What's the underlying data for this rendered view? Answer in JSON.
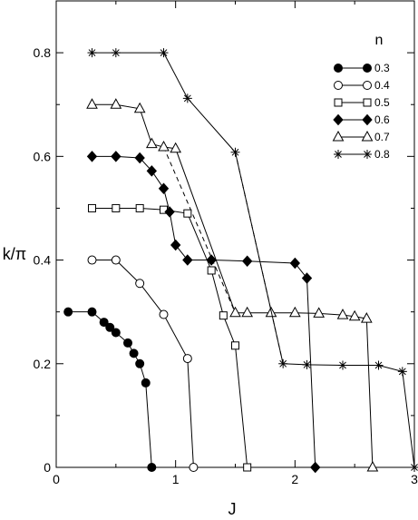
{
  "chart_data": {
    "type": "line",
    "title": "",
    "xlabel": "J",
    "ylabel": "k/π",
    "xlim": [
      0,
      3
    ],
    "ylim": [
      0,
      0.9
    ],
    "xticks": [
      "0",
      "1",
      "2",
      "3"
    ],
    "yticks": [
      "0",
      "0.2",
      "0.4",
      "0.6",
      "0.8"
    ],
    "grid": false,
    "legend": {
      "title": "n",
      "placement": "top-right"
    },
    "series": [
      {
        "name": "0.3",
        "marker": "filled-circle",
        "x": [
          0.1,
          0.3,
          0.4,
          0.45,
          0.5,
          0.6,
          0.65,
          0.7,
          0.75,
          0.8
        ],
        "y": [
          0.3,
          0.3,
          0.28,
          0.27,
          0.26,
          0.24,
          0.22,
          0.2,
          0.163,
          0.0
        ]
      },
      {
        "name": "0.4",
        "marker": "open-circle",
        "x": [
          0.3,
          0.5,
          0.7,
          0.9,
          1.1,
          1.15
        ],
        "y": [
          0.4,
          0.4,
          0.355,
          0.295,
          0.21,
          0.0
        ]
      },
      {
        "name": "0.5",
        "marker": "open-square",
        "x": [
          0.3,
          0.5,
          0.7,
          0.9,
          1.1,
          1.3,
          1.4,
          1.5,
          1.6
        ],
        "y": [
          0.5,
          0.5,
          0.5,
          0.497,
          0.49,
          0.38,
          0.293,
          0.235,
          0.0
        ]
      },
      {
        "name": "0.6",
        "marker": "filled-diamond",
        "x": [
          0.3,
          0.5,
          0.7,
          0.8,
          0.9,
          0.95,
          1.0,
          1.1,
          1.3,
          1.6,
          2.0,
          2.1,
          2.17
        ],
        "y": [
          0.6,
          0.6,
          0.597,
          0.572,
          0.538,
          0.493,
          0.429,
          0.4,
          0.4,
          0.398,
          0.394,
          0.365,
          0.0
        ]
      },
      {
        "name": "0.7",
        "marker": "open-triangle",
        "x": [
          0.3,
          0.5,
          0.7,
          0.8,
          0.9,
          1.0,
          1.5,
          1.6,
          1.8,
          2.0,
          2.2,
          2.4,
          2.5,
          2.6,
          2.65
        ],
        "y": [
          0.7,
          0.7,
          0.692,
          0.624,
          0.618,
          0.615,
          0.298,
          0.298,
          0.298,
          0.298,
          0.297,
          0.294,
          0.291,
          0.287,
          0.0
        ]
      },
      {
        "name": "0.8",
        "marker": "asterisk",
        "x": [
          0.3,
          0.5,
          0.9,
          1.1,
          1.5,
          1.9,
          2.1,
          2.4,
          2.7,
          2.9,
          3.0
        ],
        "y": [
          0.8,
          0.8,
          0.8,
          0.712,
          0.608,
          0.2,
          0.198,
          0.197,
          0.197,
          0.185,
          0.0
        ]
      }
    ],
    "dashed_connectors": [
      {
        "x": [
          0.9,
          1.5
        ],
        "y": [
          0.618,
          0.298
        ]
      },
      {
        "x": [
          1.5,
          1.9
        ],
        "y": [
          0.608,
          0.2
        ]
      }
    ]
  }
}
